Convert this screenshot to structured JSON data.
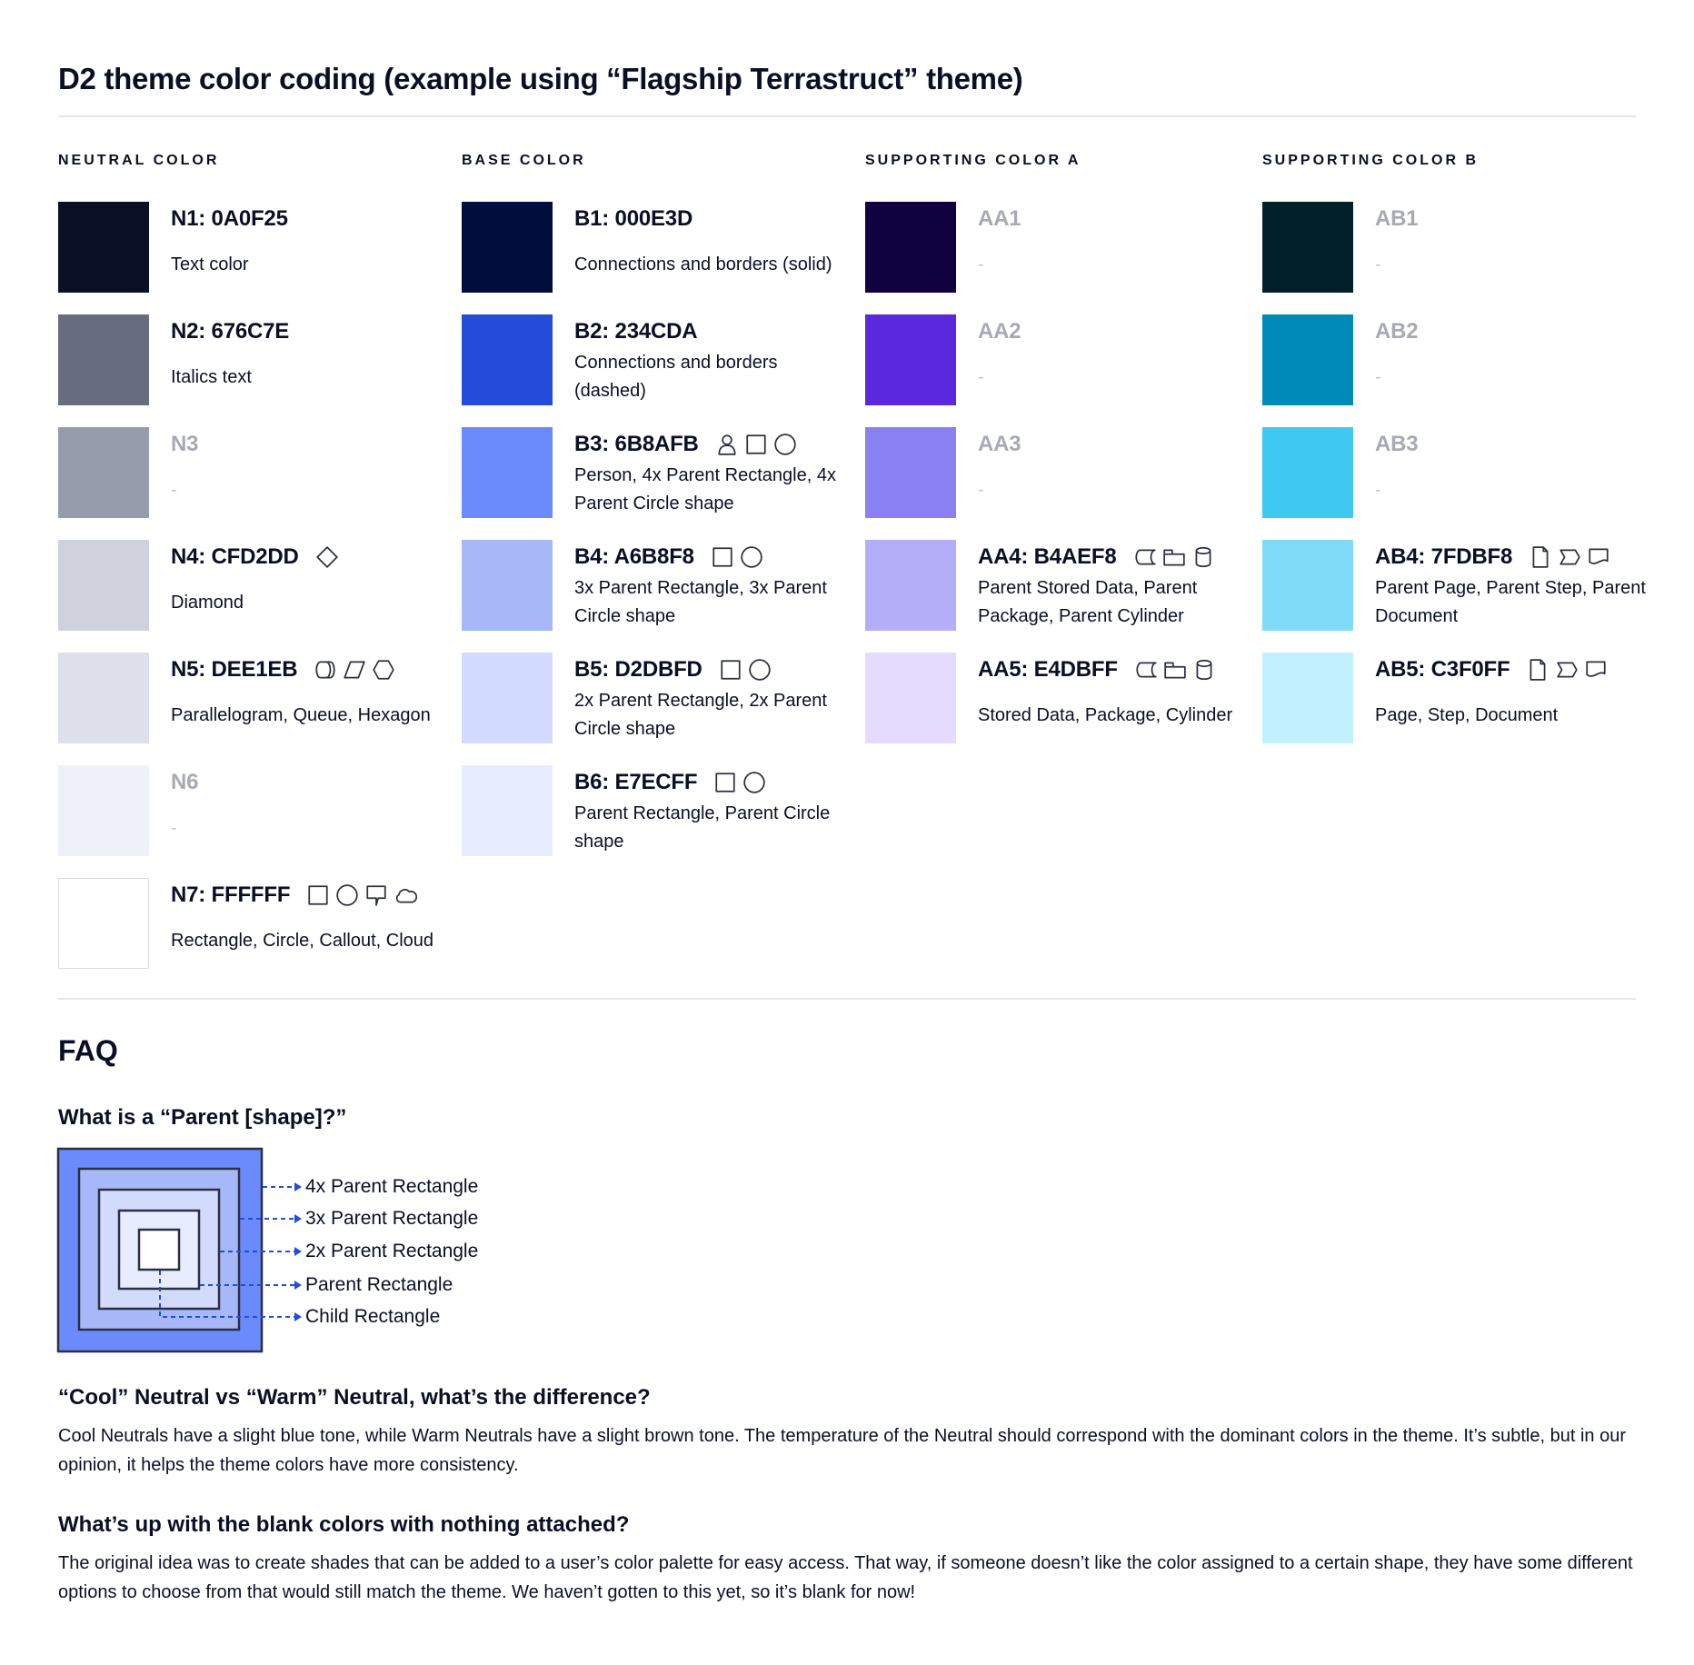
{
  "title": "D2 theme color coding (example using “Flagship Terrastruct” theme)",
  "text_color": "#0a0f25",
  "columns": [
    {
      "header": "NEUTRAL COLOR",
      "items": [
        {
          "code": "N1: 0A0F25",
          "hex": "#0A0F25",
          "desc": "Text color",
          "icons": []
        },
        {
          "code": "N2: 676C7E",
          "hex": "#676C7E",
          "desc": "Italics text",
          "icons": []
        },
        {
          "code": "N3",
          "hex": "#979CAD",
          "desc": "-",
          "icons": [],
          "muted": true
        },
        {
          "code": "N4: CFD2DD",
          "hex": "#CFD2DD",
          "desc": "Diamond",
          "icons": [
            "diamond"
          ]
        },
        {
          "code": "N5: DEE1EB",
          "hex": "#DEE1EB",
          "desc": "Parallelogram, Queue, Hexagon",
          "icons": [
            "queue",
            "parallelogram",
            "hexagon"
          ]
        },
        {
          "code": "N6",
          "hex": "#EEF1F8",
          "desc": "-",
          "icons": [],
          "muted": true
        },
        {
          "code": "N7: FFFFFF",
          "hex": "#FFFFFF",
          "desc": "Rectangle, Circle, Callout, Cloud",
          "icons": [
            "rectangle",
            "circle",
            "callout",
            "cloud"
          ]
        }
      ]
    },
    {
      "header": "BASE COLOR",
      "items": [
        {
          "code": "B1: 000E3D",
          "hex": "#000E3D",
          "desc": "Connections and borders (solid)",
          "icons": []
        },
        {
          "code": "B2: 234CDA",
          "hex": "#234CDA",
          "desc": "Connections and borders (dashed)",
          "icons": []
        },
        {
          "code": "B3: 6B8AFB",
          "hex": "#6B8AFB",
          "desc": "Person, 4x Parent Rectangle, 4x Parent Circle shape",
          "icons": [
            "person",
            "rectangle",
            "circle"
          ]
        },
        {
          "code": "B4: A6B8F8",
          "hex": "#A6B8F8",
          "desc": "3x Parent Rectangle, 3x Parent Circle shape",
          "icons": [
            "rectangle",
            "circle"
          ]
        },
        {
          "code": "B5: D2DBFD",
          "hex": "#D2DBFD",
          "desc": "2x Parent Rectangle, 2x Parent Circle shape",
          "icons": [
            "rectangle",
            "circle"
          ]
        },
        {
          "code": "B6: E7ECFF",
          "hex": "#E7ECFF",
          "desc": "Parent Rectangle, Parent Circle shape",
          "icons": [
            "rectangle",
            "circle"
          ]
        }
      ]
    },
    {
      "header": "SUPPORTING COLOR A",
      "items": [
        {
          "code": "AA1",
          "hex": "#10023F",
          "desc": "-",
          "icons": [],
          "muted": true
        },
        {
          "code": "AA2",
          "hex": "#5A28DD",
          "desc": "-",
          "icons": [],
          "muted": true
        },
        {
          "code": "AA3",
          "hex": "#8A80F2",
          "desc": "-",
          "icons": [],
          "muted": true
        },
        {
          "code": "AA4: B4AEF8",
          "hex": "#B4AEF8",
          "desc": "Parent Stored Data, Parent Package,  Parent Cylinder",
          "icons": [
            "stored-data",
            "package",
            "cylinder"
          ]
        },
        {
          "code": "AA5: E4DBFF",
          "hex": "#E4DBFF",
          "desc": "Stored Data, Package, Cylinder",
          "icons": [
            "stored-data",
            "package",
            "cylinder"
          ]
        }
      ]
    },
    {
      "header": "SUPPORTING COLOR B",
      "items": [
        {
          "code": "AB1",
          "hex": "#02202A",
          "desc": "-",
          "icons": [],
          "muted": true
        },
        {
          "code": "AB2",
          "hex": "#008AB7",
          "desc": "-",
          "icons": [],
          "muted": true
        },
        {
          "code": "AB3",
          "hex": "#3FC8F0",
          "desc": "-",
          "icons": [],
          "muted": true
        },
        {
          "code": "AB4: 7FDBF8",
          "hex": "#7FDBF8",
          "desc": "Parent Page, Parent Step, Parent Document",
          "icons": [
            "page",
            "step",
            "document"
          ]
        },
        {
          "code": "AB5: C3F0FF",
          "hex": "#C3F0FF",
          "desc": "Page, Step, Document",
          "icons": [
            "page",
            "step",
            "document"
          ]
        }
      ]
    }
  ],
  "faq": {
    "title": "FAQ",
    "q1": "What is a “Parent [shape]?”",
    "diagram_labels": [
      "4x Parent Rectangle",
      "3x Parent Rectangle",
      "2x Parent Rectangle",
      "Parent Rectangle",
      "Child Rectangle"
    ],
    "q2": "“Cool” Neutral vs “Warm” Neutral, what’s the difference?",
    "a2": "Cool Neutrals have a slight blue tone, while Warm Neutrals have a slight brown tone. The temperature of the Neutral should correspond with the dominant colors in the theme. It’s subtle, but in our opinion, it helps the theme colors have more consistency.",
    "q3": "What’s up with the blank colors with nothing attached?",
    "a3": "The original idea was to create shades that can be added to a user’s color palette for easy access. That way, if someone doesn’t like the color assigned to a certain shape, they have some different options to choose from that would still match the theme. We haven’t gotten to this yet, so it’s blank for now!"
  }
}
